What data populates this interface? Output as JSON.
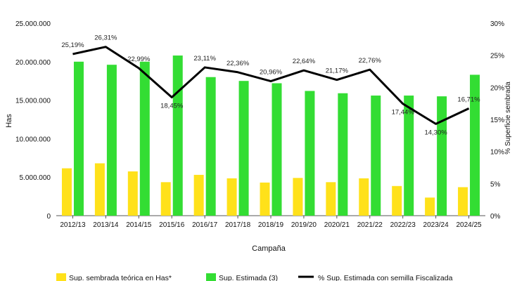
{
  "chart_data": {
    "type": "bar",
    "categories": [
      "2012/13",
      "2013/14",
      "2014/15",
      "2015/16",
      "2016/17",
      "2017/18",
      "2018/19",
      "2019/20",
      "2020/21",
      "2021/22",
      "2022/23",
      "2023/24",
      "2024/25"
    ],
    "series": [
      {
        "name": "Sup. sembrada teórica en Has*",
        "type": "bar",
        "axis": "left",
        "color": "#ffe11a",
        "values": [
          6150000,
          6800000,
          5750000,
          4350000,
          5300000,
          4850000,
          4300000,
          4900000,
          4350000,
          4850000,
          3850000,
          2350000,
          3700000
        ]
      },
      {
        "name": "Sup. Estimada (3)",
        "type": "bar",
        "axis": "left",
        "color": "#33dd33",
        "values": [
          20000000,
          19600000,
          20000000,
          20800000,
          18000000,
          17500000,
          17200000,
          16200000,
          15900000,
          15600000,
          15600000,
          15500000,
          18300000
        ]
      },
      {
        "name": "% Sup. Estimada con semilla Fiscalizada",
        "type": "line",
        "axis": "right",
        "color": "#000000",
        "values": [
          25.19,
          26.31,
          22.99,
          18.45,
          23.11,
          22.36,
          20.96,
          22.64,
          21.17,
          22.76,
          17.44,
          14.3,
          16.71
        ]
      }
    ],
    "value_labels": [
      "25,19%",
      "26,31%",
      "22,99%",
      "18,45%",
      "23,11%",
      "22,36%",
      "20,96%",
      "22,64%",
      "21,17%",
      "22,76%",
      "17,44%",
      "14,30%",
      "16,71%"
    ],
    "xlabel": "Campaña",
    "ylabel": "Has",
    "y2label": "% Superficie sembrada",
    "ylim": [
      0,
      25000000
    ],
    "y2lim": [
      0,
      30
    ],
    "yticks": [
      "0",
      "5.000.000",
      "10.000.000",
      "15.000.000",
      "20.000.000",
      "25.000.000"
    ],
    "y2ticks": [
      "0%",
      "5%",
      "10%",
      "15%",
      "20%",
      "25%",
      "30%"
    ],
    "grid": false,
    "legend_position": "bottom"
  }
}
